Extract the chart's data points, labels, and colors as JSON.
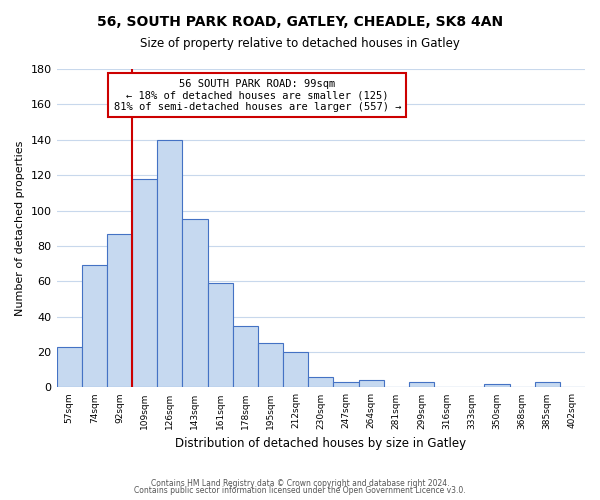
{
  "title": "56, SOUTH PARK ROAD, GATLEY, CHEADLE, SK8 4AN",
  "subtitle": "Size of property relative to detached houses in Gatley",
  "xlabel": "Distribution of detached houses by size in Gatley",
  "ylabel": "Number of detached properties",
  "bar_labels": [
    "57sqm",
    "74sqm",
    "92sqm",
    "109sqm",
    "126sqm",
    "143sqm",
    "161sqm",
    "178sqm",
    "195sqm",
    "212sqm",
    "230sqm",
    "247sqm",
    "264sqm",
    "281sqm",
    "299sqm",
    "316sqm",
    "333sqm",
    "350sqm",
    "368sqm",
    "385sqm",
    "402sqm"
  ],
  "bar_values": [
    23,
    69,
    87,
    118,
    140,
    95,
    59,
    35,
    25,
    20,
    6,
    3,
    4,
    0,
    3,
    0,
    0,
    2,
    0,
    3,
    0
  ],
  "bar_color": "#c6d9f0",
  "bar_edge_color": "#4472c4",
  "ylim": [
    0,
    180
  ],
  "yticks": [
    0,
    20,
    40,
    60,
    80,
    100,
    120,
    140,
    160,
    180
  ],
  "vline_pos": 2.5,
  "vline_color": "#cc0000",
  "annotation_title": "56 SOUTH PARK ROAD: 99sqm",
  "annotation_line1": "← 18% of detached houses are smaller (125)",
  "annotation_line2": "81% of semi-detached houses are larger (557) →",
  "annotation_box_color": "#ffffff",
  "annotation_box_edge": "#cc0000",
  "footer1": "Contains HM Land Registry data © Crown copyright and database right 2024.",
  "footer2": "Contains public sector information licensed under the Open Government Licence v3.0.",
  "background_color": "#ffffff",
  "grid_color": "#c8d8ec"
}
